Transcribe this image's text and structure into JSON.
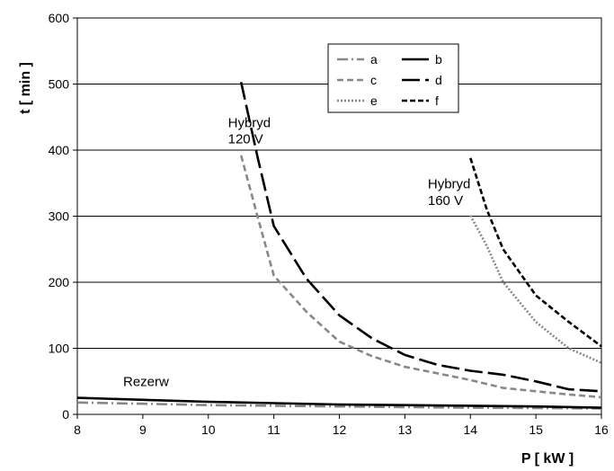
{
  "chart_data": {
    "type": "line",
    "xlabel": "P [ kW ]",
    "ylabel": "t [ min ]",
    "xlim": [
      8,
      16
    ],
    "ylim": [
      0,
      600
    ],
    "x_ticks": [
      "8",
      "9",
      "10",
      "11",
      "12",
      "13",
      "14",
      "15",
      "16"
    ],
    "y_ticks": [
      "0",
      "100",
      "200",
      "300",
      "400",
      "500",
      "600"
    ],
    "grid": "horizontal",
    "legend_position": "top-right",
    "series": [
      {
        "name": "a",
        "color": "#888888",
        "dash": "dash-dot",
        "points": [
          [
            8,
            18
          ],
          [
            9,
            16
          ],
          [
            10,
            14
          ],
          [
            11,
            13
          ],
          [
            12,
            12
          ],
          [
            13,
            11
          ],
          [
            14,
            10
          ],
          [
            15,
            9.5
          ],
          [
            16,
            9
          ]
        ]
      },
      {
        "name": "b",
        "color": "#000000",
        "dash": "solid",
        "points": [
          [
            8,
            25
          ],
          [
            9,
            22
          ],
          [
            10,
            19
          ],
          [
            11,
            17
          ],
          [
            12,
            15
          ],
          [
            13,
            14
          ],
          [
            14,
            13
          ],
          [
            15,
            12
          ],
          [
            16,
            10
          ]
        ]
      },
      {
        "name": "c",
        "color": "#888888",
        "dash": "dashed",
        "points": [
          [
            10.5,
            392
          ],
          [
            10.75,
            300
          ],
          [
            11,
            210
          ],
          [
            11.5,
            155
          ],
          [
            12,
            110
          ],
          [
            12.5,
            88
          ],
          [
            13,
            72
          ],
          [
            13.5,
            62
          ],
          [
            14,
            52
          ],
          [
            14.5,
            40
          ],
          [
            15,
            35
          ],
          [
            15.5,
            30
          ],
          [
            16,
            26
          ]
        ]
      },
      {
        "name": "d",
        "color": "#000000",
        "dash": "long-dash",
        "points": [
          [
            10.5,
            503
          ],
          [
            10.75,
            390
          ],
          [
            11,
            285
          ],
          [
            11.5,
            205
          ],
          [
            12,
            150
          ],
          [
            12.5,
            115
          ],
          [
            13,
            90
          ],
          [
            13.5,
            75
          ],
          [
            14,
            66
          ],
          [
            14.5,
            60
          ],
          [
            15,
            50
          ],
          [
            15.5,
            38
          ],
          [
            16,
            35
          ]
        ]
      },
      {
        "name": "e",
        "color": "#888888",
        "dash": "dotted",
        "points": [
          [
            14,
            301
          ],
          [
            14.25,
            255
          ],
          [
            14.5,
            200
          ],
          [
            15,
            140
          ],
          [
            15.5,
            100
          ],
          [
            16,
            78
          ]
        ]
      },
      {
        "name": "f",
        "color": "#000000",
        "dash": "short-dash",
        "points": [
          [
            14,
            388
          ],
          [
            14.25,
            310
          ],
          [
            14.5,
            250
          ],
          [
            15,
            180
          ],
          [
            15.5,
            140
          ],
          [
            16,
            103
          ]
        ]
      }
    ],
    "annotations": [
      {
        "text": "Hybryd",
        "x": 10.3,
        "y": 435
      },
      {
        "text": "120 V",
        "x": 10.3,
        "y": 410
      },
      {
        "text": "Hybryd",
        "x": 13.35,
        "y": 342
      },
      {
        "text": "160 V",
        "x": 13.35,
        "y": 317
      },
      {
        "text": "Rezerw",
        "x": 8.7,
        "y": 43
      }
    ]
  }
}
